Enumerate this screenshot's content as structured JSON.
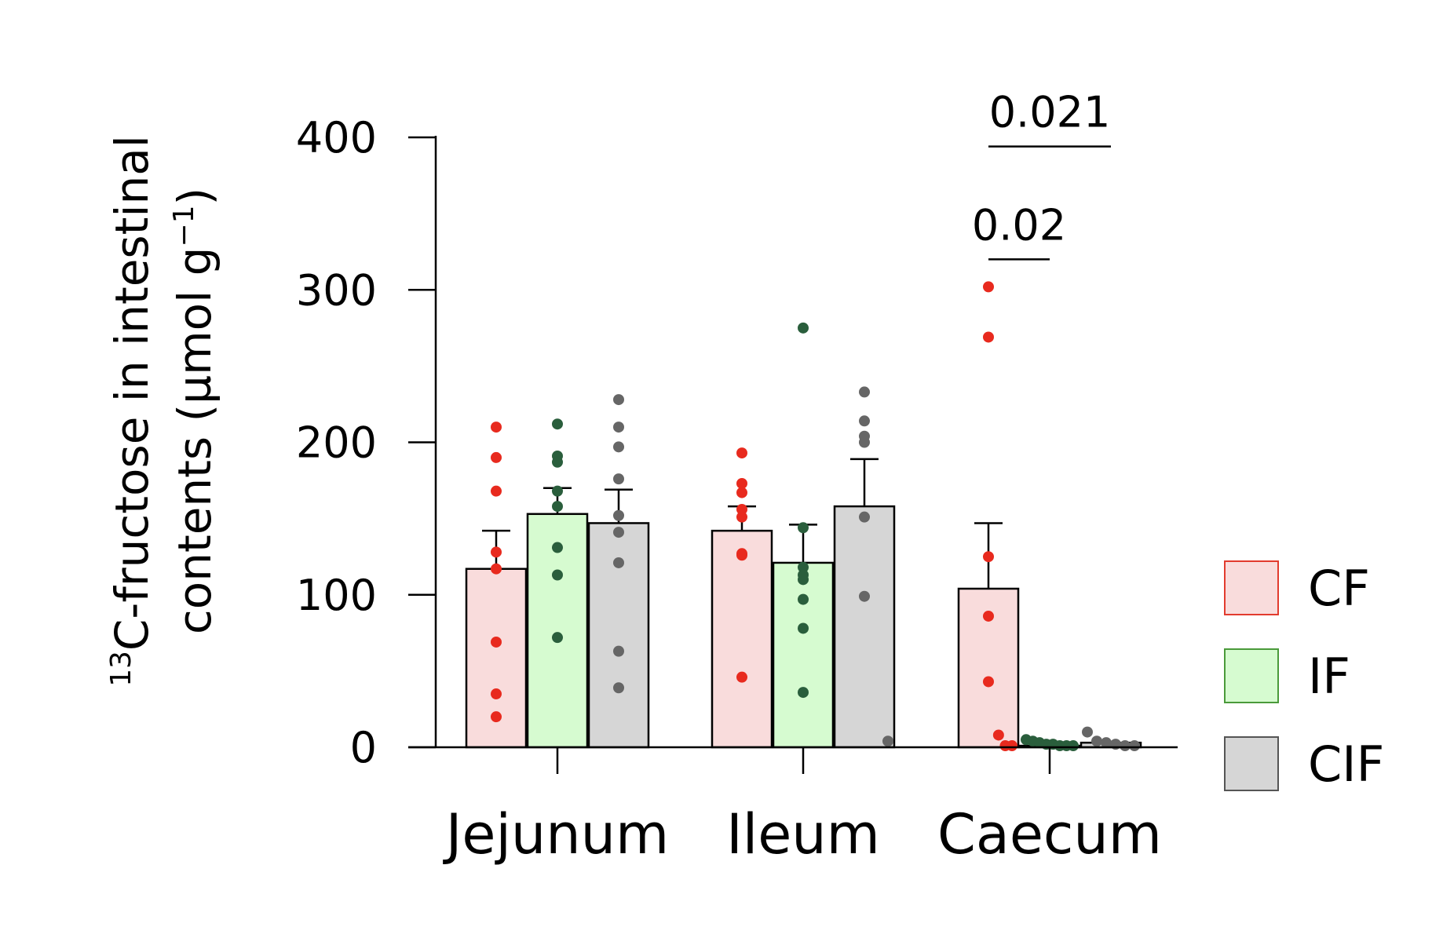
{
  "chart_data": {
    "type": "bar",
    "categories": [
      "Jejunum",
      "Ileum",
      "Caecum"
    ],
    "ylabel_lines": [
      {
        "sup": "13",
        "text": "C-fructose in intestinal"
      },
      {
        "text": "contents (µmol g",
        "sup": "−1",
        "text_after": ")"
      }
    ],
    "ylim": [
      0,
      400
    ],
    "yticks": [
      0,
      100,
      200,
      300,
      400
    ],
    "ytick_labels": [
      "0",
      "100",
      "200",
      "300",
      "400"
    ],
    "legend_position": "right",
    "series": [
      {
        "name": "CF",
        "fill": "#f9dcdc",
        "edge": "#e23b2e",
        "dot": "#e82a1e",
        "values": [
          117,
          142,
          104
        ],
        "errors": [
          25,
          16,
          43
        ],
        "points": [
          [
            210,
            190,
            168,
            128,
            117,
            69,
            35,
            20
          ],
          [
            193,
            173,
            167,
            156,
            151,
            127,
            126,
            46
          ],
          [
            302,
            269,
            125,
            86,
            43,
            8,
            1,
            1
          ]
        ]
      },
      {
        "name": "IF",
        "fill": "#d6fbd0",
        "edge": "#4a9a3a",
        "dot": "#2a5e3c",
        "values": [
          153,
          121,
          1
        ],
        "errors": [
          17,
          25,
          1
        ],
        "points": [
          [
            212,
            191,
            187,
            168,
            158,
            131,
            113,
            72
          ],
          [
            275,
            144,
            118,
            113,
            110,
            97,
            78,
            36
          ],
          [
            5,
            4,
            3,
            2,
            2,
            1,
            1,
            1
          ]
        ]
      },
      {
        "name": "CIF",
        "fill": "#d6d6d6",
        "edge": "#555555",
        "dot": "#666666",
        "values": [
          147,
          158,
          3
        ],
        "errors": [
          22,
          31,
          1
        ],
        "points": [
          [
            228,
            210,
            197,
            176,
            152,
            141,
            121,
            63,
            39
          ],
          [
            233,
            214,
            204,
            200,
            151,
            99,
            4
          ],
          [
            10,
            4,
            3,
            2,
            1,
            1
          ]
        ]
      }
    ],
    "annotations": [
      {
        "text": "0.021",
        "category": "Caecum",
        "from_series": 0,
        "to_series": 2,
        "y": 394
      },
      {
        "text": "0.02",
        "category": "Caecum",
        "from_series": 0,
        "to_series": 1,
        "y": 320
      }
    ]
  }
}
